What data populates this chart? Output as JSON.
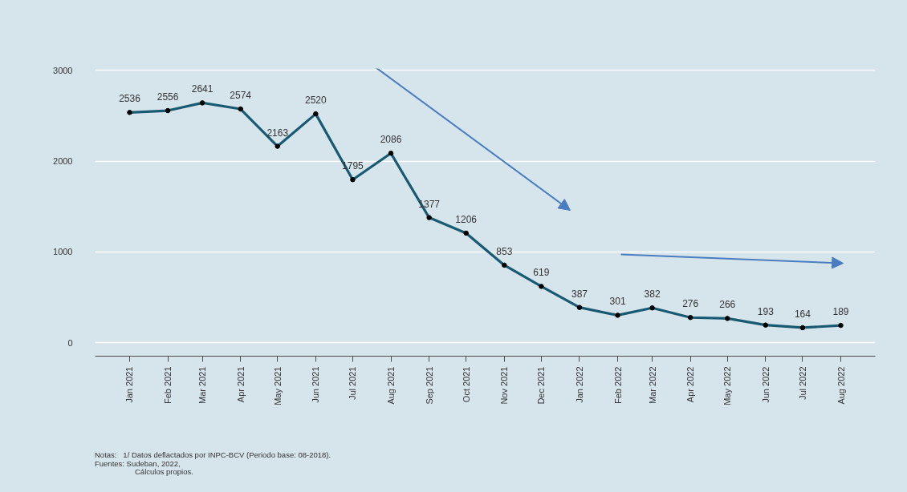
{
  "chart_data": {
    "type": "line",
    "x": [
      "2021-01",
      "2021-02",
      "2021-03",
      "2021-04",
      "2021-05",
      "2021-06",
      "2021-07",
      "2021-08",
      "2021-09",
      "2021-10",
      "2021-11",
      "2021-12",
      "2022-01",
      "2022-02",
      "2022-03",
      "2022-04",
      "2022-05",
      "2022-06",
      "2022-07",
      "2022-08"
    ],
    "series": [
      {
        "color": "#185a72",
        "values": [
          2536,
          2556,
          2641,
          2574,
          2163,
          2520,
          1795,
          2086,
          1377,
          1206,
          853,
          619,
          387,
          301,
          382,
          276,
          266,
          193,
          164,
          189
        ]
      }
    ],
    "xlim": [
      "2020-12-04",
      "2022-08-29"
    ],
    "xticks": [
      {
        "value": "2021-01",
        "label": "Jan 2021"
      },
      {
        "value": "2021-02",
        "label": "Feb 2021"
      },
      {
        "value": "2021-03",
        "label": "Mar 2021"
      },
      {
        "value": "2021-04",
        "label": "Apr 2021"
      },
      {
        "value": "2021-05",
        "label": "May 2021"
      },
      {
        "value": "2021-06",
        "label": "Jun 2021"
      },
      {
        "value": "2021-07",
        "label": "Jul 2021"
      },
      {
        "value": "2021-08",
        "label": "Aug 2021"
      },
      {
        "value": "2021-09",
        "label": "Sep 2021"
      },
      {
        "value": "2021-10",
        "label": "Oct 2021"
      },
      {
        "value": "2021-11",
        "label": "Nov 2021"
      },
      {
        "value": "2021-12",
        "label": "Dec 2021"
      },
      {
        "value": "2022-01",
        "label": "Jan 2022"
      },
      {
        "value": "2022-02",
        "label": "Feb 2022"
      },
      {
        "value": "2022-03",
        "label": "Mar 2022"
      },
      {
        "value": "2022-04",
        "label": "Apr 2022"
      },
      {
        "value": "2022-05",
        "label": "May 2022"
      },
      {
        "value": "2022-06",
        "label": "Jun 2022"
      },
      {
        "value": "2022-07",
        "label": "Jul 2022"
      },
      {
        "value": "2022-08",
        "label": "Aug 2022"
      }
    ],
    "ylim": [
      -150,
      3020
    ],
    "yticks": [
      0,
      1000,
      2000,
      3000
    ],
    "grid": "y",
    "marker": "circle",
    "line_style": "solid",
    "data_labels": true,
    "annotations": [
      "Notas:   1/ Datos deflactados por INPC-BCV (Periodo base: 08-2018).",
      "Fuentes: Sudeban, 2022,",
      "Cálculos propios."
    ]
  }
}
